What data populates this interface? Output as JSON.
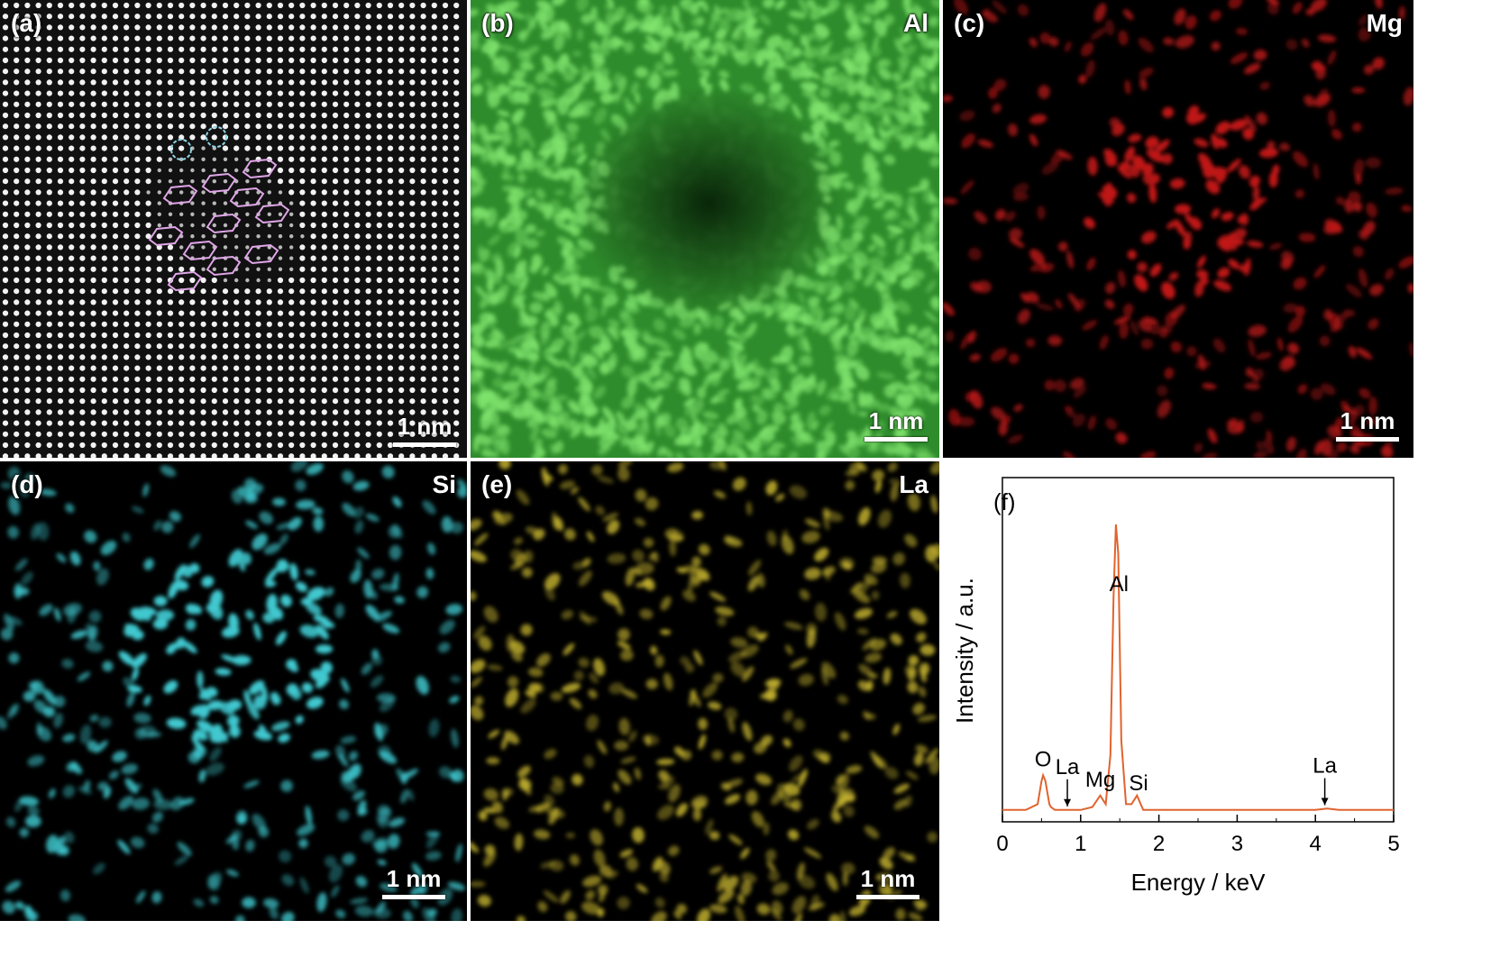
{
  "panels": {
    "a": {
      "label": "(a)",
      "scale": "1 nm"
    },
    "b": {
      "label": "(b)",
      "element": "Al",
      "scale": "1 nm",
      "color": "#4fd04a"
    },
    "c": {
      "label": "(c)",
      "element": "Mg",
      "scale": "1 nm",
      "color": "#e3302c"
    },
    "d": {
      "label": "(d)",
      "element": "Si",
      "scale": "1 nm",
      "color": "#4cd6dc"
    },
    "e": {
      "label": "(e)",
      "element": "La",
      "scale": "1 nm",
      "color": "#e2d23a"
    },
    "f": {
      "label": "(f)"
    }
  },
  "chart_data": {
    "type": "line",
    "title": "",
    "xlabel": "Energy / keV",
    "ylabel": "Intensity / a.u.",
    "xlim": [
      0,
      5
    ],
    "xticks": [
      0,
      1,
      2,
      3,
      4,
      5
    ],
    "series": [
      {
        "color": "#e0642e",
        "x": [
          0,
          0.3,
          0.45,
          0.5,
          0.52,
          0.55,
          0.6,
          0.62,
          0.67,
          0.72,
          0.8,
          1.0,
          1.15,
          1.25,
          1.32,
          1.38,
          1.42,
          1.45,
          1.48,
          1.52,
          1.58,
          1.65,
          1.72,
          1.8,
          1.9,
          2.0,
          3.0,
          4.0,
          4.15,
          4.3,
          4.5,
          5.0
        ],
        "values": [
          0.01,
          0.01,
          0.03,
          0.11,
          0.13,
          0.11,
          0.03,
          0.02,
          0.01,
          0.01,
          0.01,
          0.01,
          0.02,
          0.06,
          0.03,
          0.2,
          0.75,
          1.0,
          0.9,
          0.25,
          0.03,
          0.03,
          0.06,
          0.01,
          0.01,
          0.01,
          0.01,
          0.01,
          0.015,
          0.01,
          0.01,
          0.01
        ]
      }
    ],
    "annotations": [
      {
        "text": "Al",
        "x": 1.49
      },
      {
        "text": "O",
        "x": 0.52
      },
      {
        "text": "La",
        "x": 0.83,
        "arrow": true
      },
      {
        "text": "Mg",
        "x": 1.25
      },
      {
        "text": "Si",
        "x": 1.74
      },
      {
        "text": "La",
        "x": 4.12,
        "arrow": true
      }
    ]
  }
}
